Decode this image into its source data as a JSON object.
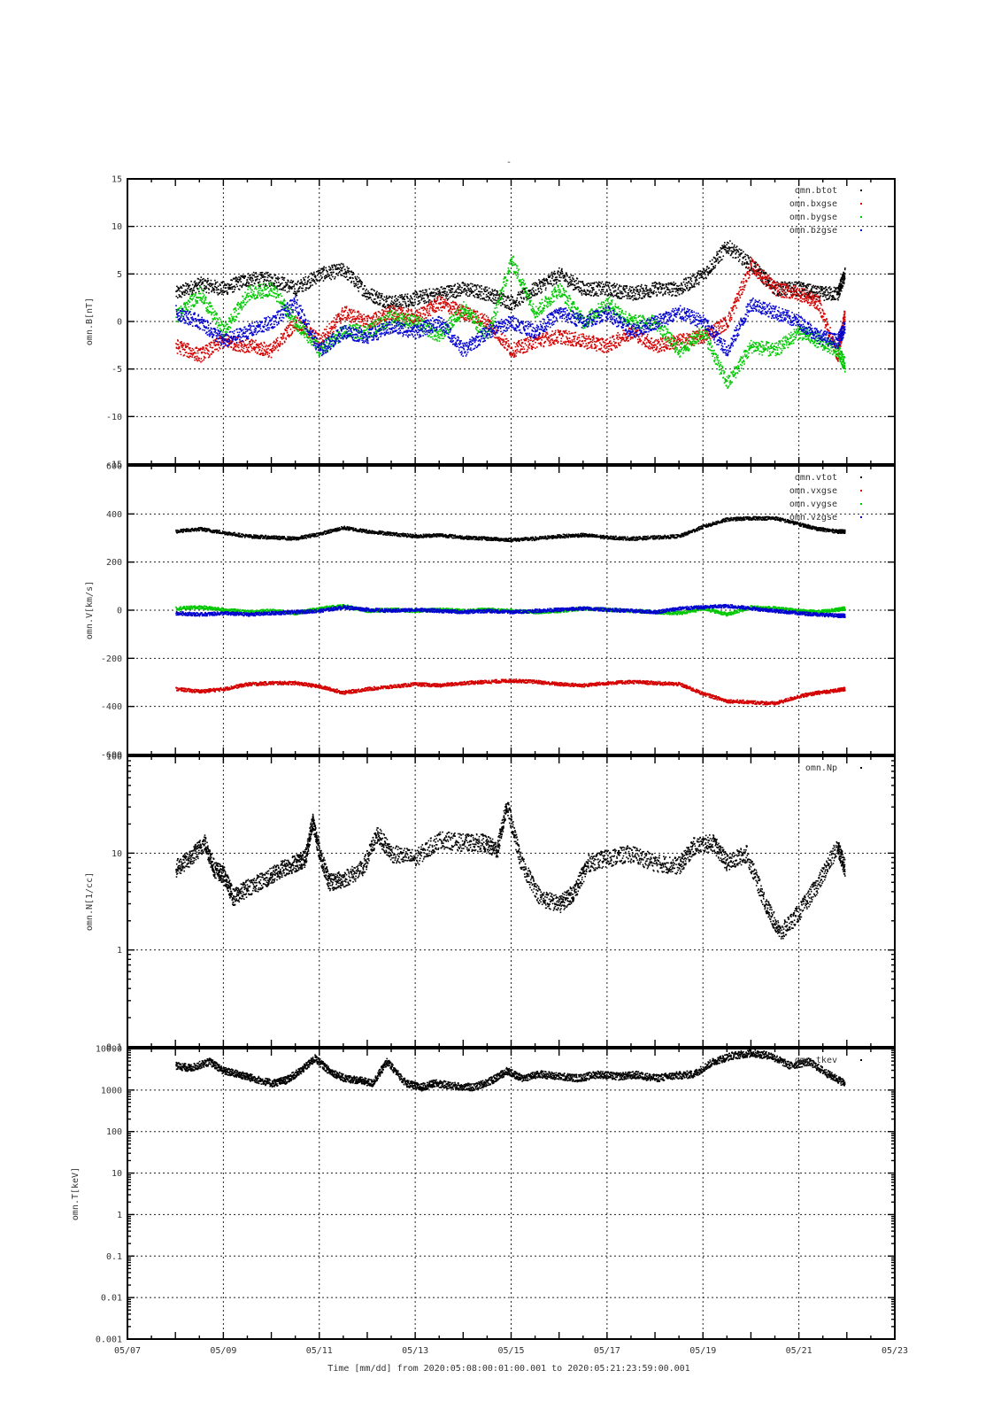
{
  "figure": {
    "title": "-",
    "xlabel": "Time [mm/dd]  from 2020:05:08:00:01:00.001  to  2020:05:21:23:59:00.001"
  },
  "chart_data": [
    {
      "type": "scatter",
      "panel": "B",
      "ylabel": "omn.B[nT]",
      "yscale": "linear",
      "ylim": [
        -15,
        15
      ],
      "yticks": [
        -15,
        -10,
        -5,
        0,
        5,
        10,
        15
      ],
      "ytick_labels": [
        "-15",
        "-10",
        "-5",
        "0",
        "5",
        "10",
        "15"
      ],
      "xlim": [
        0,
        16
      ],
      "xticks": [
        0,
        2,
        4,
        6,
        8,
        10,
        12,
        14,
        16
      ],
      "xtick_labels": [
        "05/07",
        "05/09",
        "05/11",
        "05/13",
        "05/15",
        "05/17",
        "05/19",
        "05/21",
        "05/23"
      ],
      "show_xtick_labels": false,
      "grid": true,
      "legend": "top-right",
      "x_unit": "days since 05/07 00:00",
      "series": [
        {
          "name": "omn.btot",
          "color": "#000000",
          "x": [
            1.0,
            1.5,
            2.0,
            2.5,
            3.0,
            3.5,
            4.0,
            4.5,
            5.0,
            5.5,
            6.0,
            6.5,
            7.0,
            7.5,
            8.0,
            8.5,
            9.0,
            9.5,
            10.0,
            10.5,
            11.0,
            11.5,
            12.0,
            12.5,
            13.0,
            13.5,
            14.0,
            14.4,
            14.8,
            14.95
          ],
          "y": [
            3.0,
            4.0,
            3.5,
            4.5,
            4.5,
            3.5,
            5.0,
            5.5,
            3.0,
            2.0,
            2.5,
            3.0,
            3.5,
            3.0,
            2.0,
            3.5,
            5.0,
            3.5,
            3.5,
            3.0,
            3.5,
            3.5,
            5.0,
            8.0,
            6.0,
            3.5,
            3.5,
            3.0,
            3.0,
            5.0
          ]
        },
        {
          "name": "omn.bxgse",
          "color": "#d40000",
          "x": [
            1.0,
            1.5,
            2.0,
            2.5,
            3.0,
            3.5,
            4.0,
            4.5,
            5.0,
            5.5,
            6.0,
            6.5,
            7.0,
            7.5,
            8.0,
            8.5,
            9.0,
            9.5,
            10.0,
            10.5,
            11.0,
            11.5,
            12.0,
            12.5,
            13.0,
            13.5,
            14.0,
            14.4,
            14.8,
            14.95
          ],
          "y": [
            -2.5,
            -3.5,
            -2.0,
            -2.5,
            -3.0,
            0.0,
            -2.0,
            1.0,
            0.0,
            1.0,
            0.5,
            2.0,
            1.0,
            0.0,
            -3.0,
            -2.0,
            -1.5,
            -2.0,
            -2.5,
            -1.0,
            -2.5,
            -2.0,
            -1.5,
            0.0,
            6.0,
            3.5,
            3.0,
            2.0,
            -3.5,
            1.0
          ]
        },
        {
          "name": "omn.bygse",
          "color": "#00c800",
          "x": [
            1.0,
            1.5,
            2.0,
            2.5,
            3.0,
            3.5,
            4.0,
            4.5,
            5.0,
            5.5,
            6.0,
            6.5,
            7.0,
            7.5,
            8.0,
            8.5,
            9.0,
            9.5,
            10.0,
            10.5,
            11.0,
            11.5,
            12.0,
            12.5,
            13.0,
            13.5,
            14.0,
            14.4,
            14.8,
            14.95
          ],
          "y": [
            0.5,
            3.0,
            -1.0,
            3.0,
            3.5,
            0.0,
            -3.0,
            -1.0,
            -1.0,
            0.5,
            0.0,
            -1.5,
            1.5,
            -1.5,
            6.5,
            1.0,
            3.5,
            0.0,
            2.0,
            0.0,
            0.0,
            -3.0,
            -1.0,
            -6.5,
            -2.5,
            -3.0,
            -1.0,
            -2.0,
            -3.0,
            -4.5
          ]
        },
        {
          "name": "omn.bzgse",
          "color": "#0000d0",
          "x": [
            1.0,
            1.5,
            2.0,
            2.5,
            3.0,
            3.5,
            4.0,
            4.5,
            5.0,
            5.5,
            6.0,
            6.5,
            7.0,
            7.5,
            8.0,
            8.5,
            9.0,
            9.5,
            10.0,
            10.5,
            11.0,
            11.5,
            12.0,
            12.5,
            13.0,
            13.5,
            14.0,
            14.4,
            14.8,
            14.95
          ],
          "y": [
            1.0,
            0.0,
            -2.0,
            -1.0,
            0.0,
            2.0,
            -3.0,
            -1.0,
            -1.5,
            -0.5,
            -1.0,
            0.0,
            -3.0,
            -1.0,
            0.0,
            -1.0,
            1.0,
            0.0,
            1.0,
            -1.0,
            0.0,
            1.0,
            0.0,
            -3.0,
            2.0,
            1.0,
            0.0,
            -1.5,
            -2.0,
            -0.5
          ]
        }
      ]
    },
    {
      "type": "scatter",
      "panel": "V",
      "ylabel": "omn.V[km/s]",
      "yscale": "linear",
      "ylim": [
        -600,
        600
      ],
      "yticks": [
        -600,
        -400,
        -200,
        0,
        200,
        400,
        600
      ],
      "ytick_labels": [
        "-600",
        "-400",
        "-200",
        "0",
        "200",
        "400",
        "600"
      ],
      "xlim": [
        0,
        16
      ],
      "xticks": [
        0,
        2,
        4,
        6,
        8,
        10,
        12,
        14,
        16
      ],
      "xtick_labels": [
        "05/07",
        "05/09",
        "05/11",
        "05/13",
        "05/15",
        "05/17",
        "05/19",
        "05/21",
        "05/23"
      ],
      "show_xtick_labels": false,
      "grid": true,
      "legend": "top-right",
      "x_unit": "days since 05/07 00:00",
      "series": [
        {
          "name": "omn.vtot",
          "color": "#000000",
          "x": [
            1.0,
            1.5,
            2.0,
            2.5,
            3.0,
            3.5,
            4.0,
            4.5,
            5.0,
            5.5,
            6.0,
            6.5,
            7.0,
            7.5,
            8.0,
            8.5,
            9.0,
            9.5,
            10.0,
            10.5,
            11.0,
            11.5,
            12.0,
            12.5,
            13.0,
            13.5,
            14.0,
            14.4,
            14.8,
            14.95
          ],
          "y": [
            330,
            340,
            325,
            310,
            305,
            300,
            320,
            345,
            330,
            320,
            310,
            315,
            305,
            300,
            295,
            300,
            310,
            315,
            305,
            300,
            305,
            310,
            350,
            380,
            385,
            385,
            360,
            340,
            330,
            330
          ]
        },
        {
          "name": "omn.vxgse",
          "color": "#d40000",
          "x": [
            1.0,
            1.5,
            2.0,
            2.5,
            3.0,
            3.5,
            4.0,
            4.5,
            5.0,
            5.5,
            6.0,
            6.5,
            7.0,
            7.5,
            8.0,
            8.5,
            9.0,
            9.5,
            10.0,
            10.5,
            11.0,
            11.5,
            12.0,
            12.5,
            13.0,
            13.5,
            14.0,
            14.4,
            14.8,
            14.95
          ],
          "y": [
            -325,
            -335,
            -325,
            -305,
            -300,
            -300,
            -315,
            -340,
            -325,
            -315,
            -305,
            -310,
            -300,
            -295,
            -290,
            -295,
            -305,
            -310,
            -300,
            -295,
            -300,
            -305,
            -345,
            -375,
            -380,
            -385,
            -355,
            -340,
            -330,
            -325
          ]
        },
        {
          "name": "omn.vygse",
          "color": "#00c800",
          "x": [
            1.0,
            1.5,
            2.0,
            2.5,
            3.0,
            3.5,
            4.0,
            4.5,
            5.0,
            5.5,
            6.0,
            6.5,
            7.0,
            7.5,
            8.0,
            8.5,
            9.0,
            9.5,
            10.0,
            10.5,
            11.0,
            11.5,
            12.0,
            12.5,
            13.0,
            13.5,
            14.0,
            14.4,
            14.8,
            14.95
          ],
          "y": [
            10,
            15,
            5,
            -5,
            0,
            -10,
            10,
            20,
            0,
            5,
            0,
            5,
            0,
            5,
            0,
            -5,
            0,
            10,
            5,
            0,
            -5,
            -10,
            10,
            -15,
            15,
            10,
            0,
            -5,
            5,
            10
          ]
        },
        {
          "name": "omn.vzgse",
          "color": "#0000d0",
          "x": [
            1.0,
            1.5,
            2.0,
            2.5,
            3.0,
            3.5,
            4.0,
            4.5,
            5.0,
            5.5,
            6.0,
            6.5,
            7.0,
            7.5,
            8.0,
            8.5,
            9.0,
            9.5,
            10.0,
            10.5,
            11.0,
            11.5,
            12.0,
            12.5,
            13.0,
            13.5,
            14.0,
            14.4,
            14.8,
            14.95
          ],
          "y": [
            -10,
            -15,
            -10,
            -15,
            -10,
            -5,
            0,
            15,
            5,
            0,
            5,
            0,
            -5,
            0,
            -5,
            0,
            5,
            10,
            5,
            0,
            -5,
            10,
            15,
            20,
            10,
            0,
            -10,
            -15,
            -20,
            -20
          ]
        }
      ]
    },
    {
      "type": "scatter",
      "panel": "N",
      "ylabel": "omn.N[1/cc]",
      "yscale": "log",
      "ylim": [
        0.1,
        100
      ],
      "yticks": [
        0.1,
        1,
        10,
        100
      ],
      "ytick_labels": [
        "0.1",
        "1",
        "10",
        "100"
      ],
      "xlim": [
        0,
        16
      ],
      "xticks": [
        0,
        2,
        4,
        6,
        8,
        10,
        12,
        14,
        16
      ],
      "xtick_labels": [
        "05/07",
        "05/09",
        "05/11",
        "05/13",
        "05/15",
        "05/17",
        "05/19",
        "05/21",
        "05/23"
      ],
      "show_xtick_labels": false,
      "grid": true,
      "legend": "top-right",
      "x_unit": "days since 05/07 00:00",
      "series": [
        {
          "name": "omn.Np",
          "color": "#000000",
          "x": [
            1.0,
            1.3,
            1.6,
            1.8,
            2.0,
            2.2,
            2.5,
            2.9,
            3.2,
            3.5,
            3.7,
            3.85,
            4.0,
            4.2,
            4.5,
            4.9,
            5.2,
            5.5,
            6.0,
            6.5,
            7.0,
            7.4,
            7.7,
            7.9,
            8.2,
            8.6,
            9.0,
            9.3,
            9.6,
            10.0,
            10.5,
            11.0,
            11.5,
            11.8,
            12.2,
            12.5,
            12.9,
            13.3,
            13.6,
            14.0,
            14.4,
            14.8,
            14.95
          ],
          "y": [
            7.0,
            9.0,
            13.0,
            7.0,
            6.0,
            3.5,
            4.5,
            5.5,
            7.0,
            8.0,
            9.0,
            22.0,
            10.0,
            5.0,
            5.5,
            7.0,
            16.0,
            10.0,
            9.0,
            14.0,
            13.0,
            13.0,
            11.0,
            32.0,
            8.0,
            3.5,
            3.0,
            4.0,
            8.0,
            9.0,
            10.0,
            8.0,
            7.5,
            12.0,
            13.0,
            8.0,
            10.0,
            3.0,
            1.5,
            2.5,
            5.0,
            12.0,
            7.0
          ]
        }
      ]
    },
    {
      "type": "scatter",
      "panel": "T",
      "ylabel": "omn.T[keV]",
      "yscale": "log",
      "ylim": [
        0.001,
        10000
      ],
      "yticks": [
        0.001,
        0.01,
        0.1,
        1,
        10,
        100,
        1000,
        10000
      ],
      "ytick_labels": [
        "0.001",
        "0.01",
        "0.1",
        "1",
        "10",
        "100",
        "1000",
        "10000"
      ],
      "xlim": [
        0,
        16
      ],
      "xticks": [
        0,
        2,
        4,
        6,
        8,
        10,
        12,
        14,
        16
      ],
      "xtick_labels": [
        "05/07",
        "05/09",
        "05/11",
        "05/13",
        "05/15",
        "05/17",
        "05/19",
        "05/21",
        "05/23"
      ],
      "show_xtick_labels": true,
      "grid": true,
      "legend": "top-right",
      "x_unit": "days since 05/07 00:00",
      "series": [
        {
          "name": "omn.tkev",
          "color": "#000000",
          "x": [
            1.0,
            1.3,
            1.7,
            2.0,
            2.3,
            2.6,
            3.0,
            3.3,
            3.6,
            3.9,
            4.2,
            4.5,
            4.8,
            5.1,
            5.4,
            5.8,
            6.1,
            6.4,
            6.8,
            7.2,
            7.6,
            7.9,
            8.2,
            8.6,
            9.0,
            9.4,
            9.8,
            10.2,
            10.6,
            11.0,
            11.4,
            11.8,
            12.2,
            12.6,
            13.0,
            13.4,
            13.8,
            14.2,
            14.6,
            14.95
          ],
          "y": [
            4000,
            3500,
            5000,
            3000,
            2500,
            2000,
            1500,
            1800,
            3000,
            6000,
            3000,
            2000,
            1800,
            1500,
            5000,
            1500,
            1200,
            1500,
            1300,
            1200,
            1800,
            3000,
            2000,
            2500,
            2200,
            2000,
            2500,
            2200,
            2400,
            2000,
            2300,
            2500,
            5000,
            7000,
            8000,
            7000,
            4000,
            5000,
            2500,
            1500
          ]
        }
      ]
    }
  ]
}
